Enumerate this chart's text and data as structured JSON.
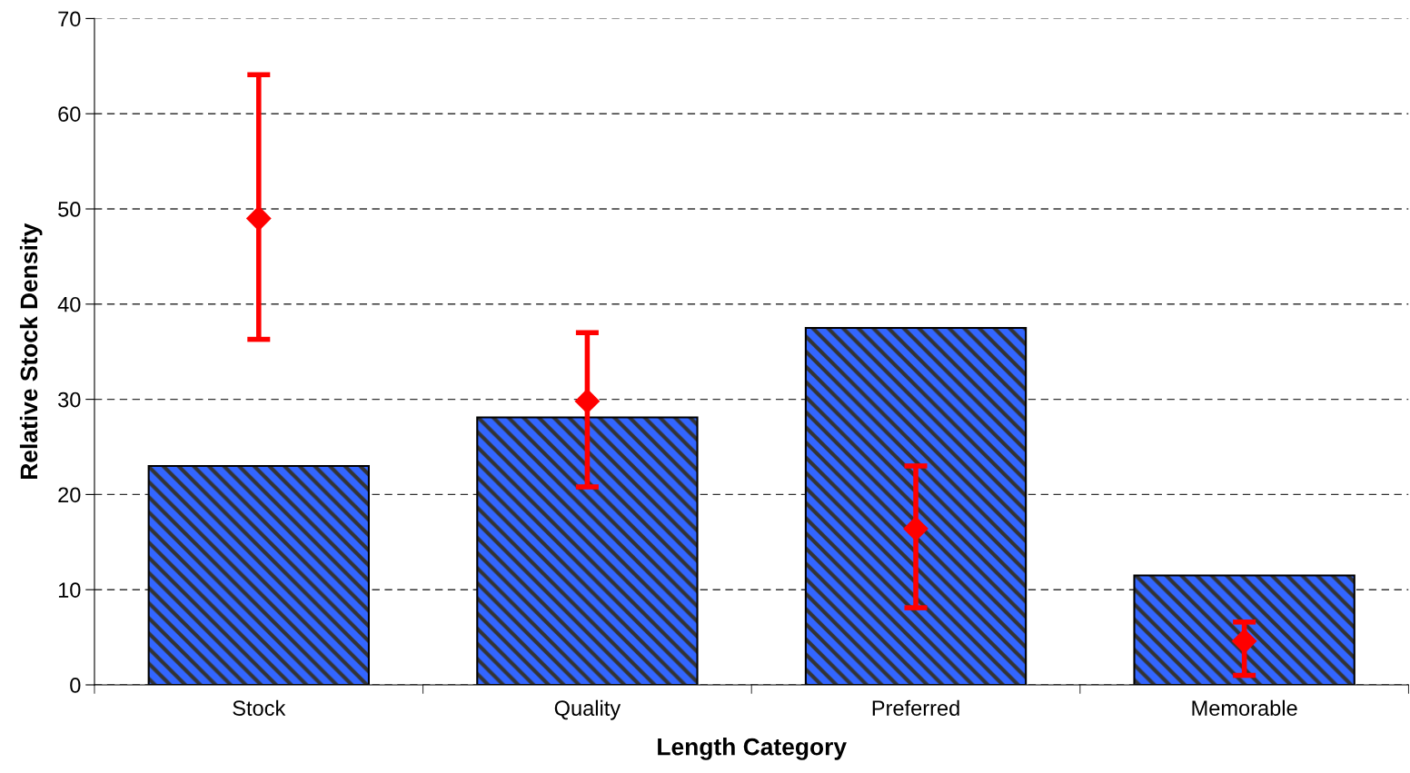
{
  "chart_data": {
    "type": "bar",
    "xlabel": "Length Category",
    "ylabel": "Relative Stock Density",
    "categories": [
      "Stock",
      "Quality",
      "Preferred",
      "Memorable"
    ],
    "series": [
      {
        "color": "#3366ff",
        "values": [
          23,
          28.1,
          37.5,
          11.5
        ]
      },
      {
        "type": "scatter",
        "color": "#ff0000",
        "marker": "diamond",
        "values": [
          49,
          29.8,
          16.4,
          4.6
        ],
        "errors": [
          [
            36.3,
            64.1
          ],
          [
            20.8,
            37.0
          ],
          [
            8.1,
            23.0
          ],
          [
            1.0,
            6.6
          ]
        ]
      }
    ],
    "ylim": [
      0,
      70
    ],
    "yticks": [
      0,
      10,
      20,
      30,
      40,
      50,
      60,
      70
    ],
    "grid": "y",
    "legend": false
  }
}
